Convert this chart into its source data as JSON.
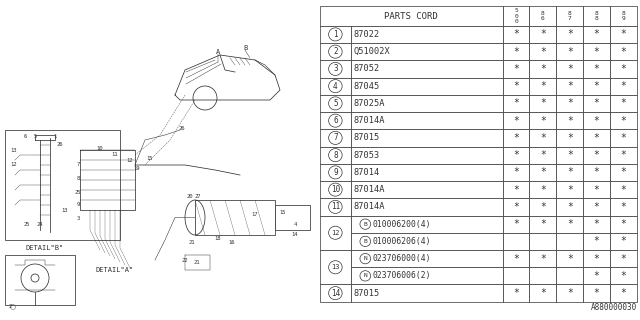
{
  "bg_color": "#ffffff",
  "diagram_ref": "A880000030",
  "table": {
    "col_labels": [
      "5\n0\n0",
      "8\n6",
      "8\n7",
      "8\n8",
      "8\n9"
    ],
    "rows": [
      {
        "num": "1",
        "part": "87022",
        "cols": [
          "*",
          "*",
          "*",
          "*",
          "*"
        ],
        "double": false
      },
      {
        "num": "2",
        "part": "Q51002X",
        "cols": [
          "*",
          "*",
          "*",
          "*",
          "*"
        ],
        "double": false
      },
      {
        "num": "3",
        "part": "87052",
        "cols": [
          "*",
          "*",
          "*",
          "*",
          "*"
        ],
        "double": false
      },
      {
        "num": "4",
        "part": "87045",
        "cols": [
          "*",
          "*",
          "*",
          "*",
          "*"
        ],
        "double": false
      },
      {
        "num": "5",
        "part": "87025A",
        "cols": [
          "*",
          "*",
          "*",
          "*",
          "*"
        ],
        "double": false
      },
      {
        "num": "6",
        "part": "87014A",
        "cols": [
          "*",
          "*",
          "*",
          "*",
          "*"
        ],
        "double": false
      },
      {
        "num": "7",
        "part": "87015",
        "cols": [
          "*",
          "*",
          "*",
          "*",
          "*"
        ],
        "double": false
      },
      {
        "num": "8",
        "part": "87053",
        "cols": [
          "*",
          "*",
          "*",
          "*",
          "*"
        ],
        "double": false
      },
      {
        "num": "9",
        "part": "87014",
        "cols": [
          "*",
          "*",
          "*",
          "*",
          "*"
        ],
        "double": false
      },
      {
        "num": "10",
        "part": "87014A",
        "cols": [
          "*",
          "*",
          "*",
          "*",
          "*"
        ],
        "double": false
      },
      {
        "num": "11",
        "part": "87014A",
        "cols": [
          "*",
          "*",
          "*",
          "*",
          "*"
        ],
        "double": false
      },
      {
        "num": "12",
        "part_a": "B010006200(4)",
        "part_b": "B010006206(4)",
        "cols_a": [
          "*",
          "*",
          "*",
          "*",
          "*"
        ],
        "cols_b": [
          "",
          "",
          "",
          "*",
          "*"
        ],
        "double": true
      },
      {
        "num": "13",
        "part_a": "N023706000(4)",
        "part_b": "N023706006(2)",
        "cols_a": [
          "*",
          "*",
          "*",
          "*",
          "*"
        ],
        "cols_b": [
          "",
          "",
          "",
          "*",
          "*"
        ],
        "double": true
      },
      {
        "num": "14",
        "part": "87015",
        "cols": [
          "*",
          "*",
          "*",
          "*",
          "*"
        ],
        "double": false
      }
    ]
  }
}
